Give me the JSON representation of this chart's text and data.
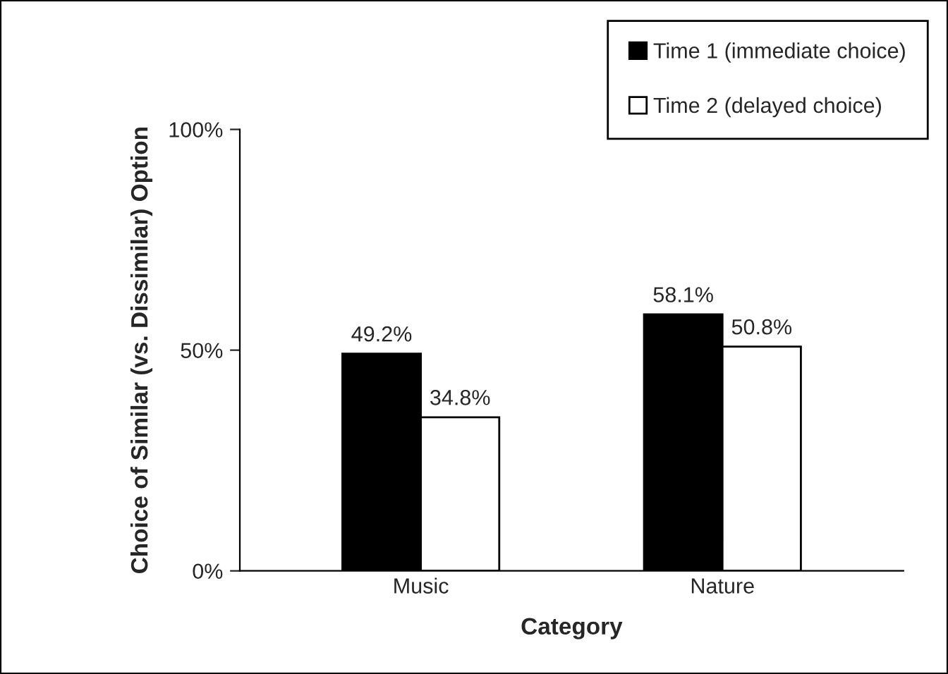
{
  "chart_data": {
    "type": "bar",
    "xlabel": "Category",
    "ylabel": "Choice of Similar (vs. Dissimilar) Option",
    "categories": [
      "Music",
      "Nature"
    ],
    "series": [
      {
        "name": "Time 1 (immediate choice)",
        "color": "#000000",
        "values": [
          49.2,
          58.1
        ],
        "value_labels": [
          "49.2%",
          "58.1%"
        ]
      },
      {
        "name": "Time 2 (delayed choice)",
        "color": "#ffffff",
        "values": [
          34.8,
          50.8
        ],
        "value_labels": [
          "34.8%",
          "50.8%"
        ]
      }
    ],
    "ylim": [
      0,
      100
    ],
    "yticks": [
      {
        "value": 0,
        "label": "0%"
      },
      {
        "value": 50,
        "label": "50%"
      },
      {
        "value": 100,
        "label": "100%"
      }
    ],
    "grid": false,
    "legend": "top right"
  }
}
